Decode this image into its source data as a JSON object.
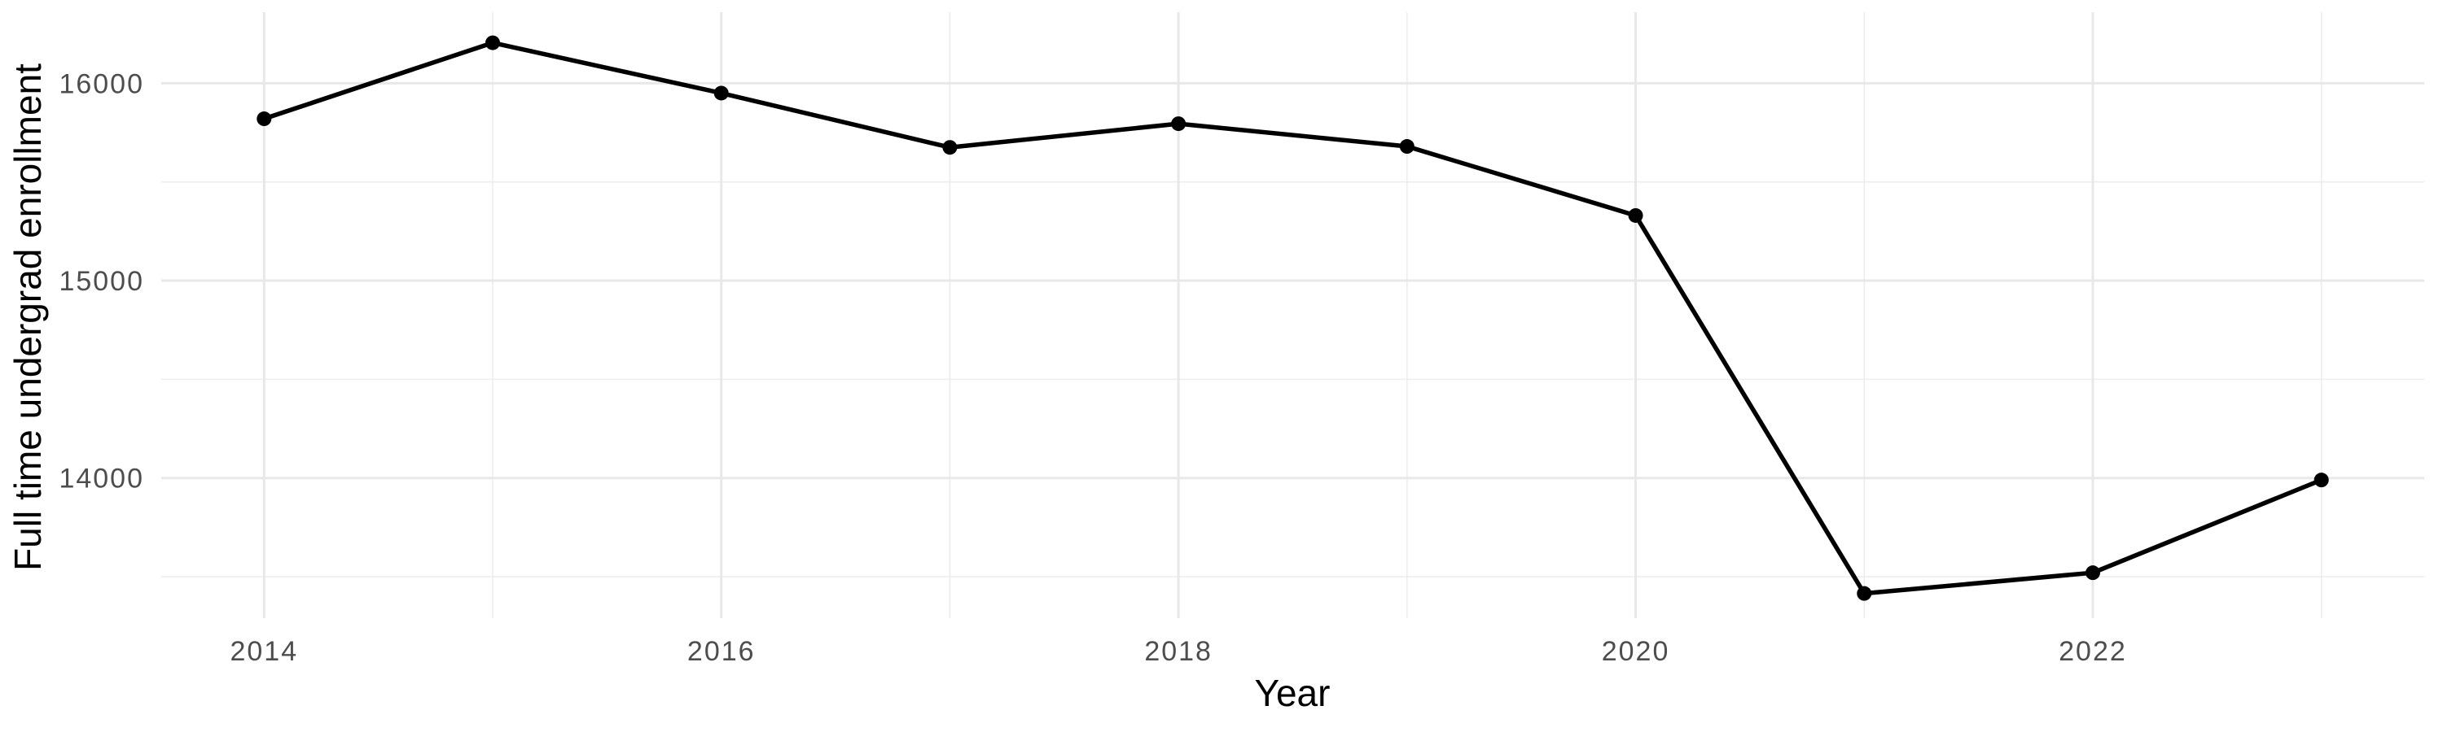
{
  "figure": {
    "background": "#FFFFFF",
    "title": ""
  },
  "chart_data": {
    "type": "line",
    "title": "",
    "xlabel": "Year",
    "ylabel": "Full time undergrad enrollment",
    "x": [
      2014,
      2015,
      2016,
      2017,
      2018,
      2019,
      2020,
      2021,
      2022,
      2023
    ],
    "series": [
      {
        "name": "Full time undergrad enrollment",
        "values": [
          15820,
          16205,
          15950,
          15675,
          15795,
          15680,
          15330,
          13415,
          13520,
          13990
        ]
      }
    ],
    "xlim": [
      2013.55,
      2023.45
    ],
    "ylim": [
      13290,
      16360
    ],
    "x_ticks": {
      "major": [
        2014,
        2016,
        2018,
        2020,
        2022
      ],
      "labels": [
        "2014",
        "2016",
        "2018",
        "2020",
        "2022"
      ],
      "minor": [
        2015,
        2017,
        2019,
        2021,
        2023
      ]
    },
    "y_ticks": {
      "major": [
        14000,
        15000,
        16000
      ],
      "labels": [
        "14000",
        "15000",
        "16000"
      ],
      "minor": [
        13500,
        14500,
        15500
      ]
    },
    "grid": "major-and-minor",
    "legend_position": "none",
    "style": {
      "line_color": "#000000",
      "point_color": "#000000",
      "grid_major_color": "#E8E8E8",
      "grid_minor_color": "#EDEDED",
      "tick_label_color": "#4D4D4D",
      "axis_title_color": "#000000",
      "background_color": "#FFFFFF"
    }
  }
}
